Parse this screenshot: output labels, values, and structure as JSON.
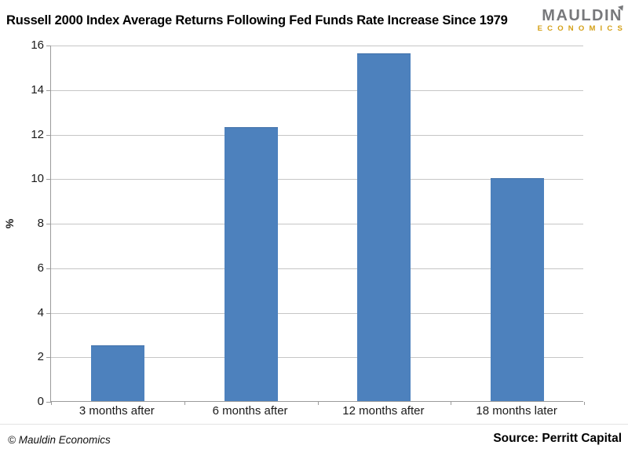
{
  "header": {
    "title": "Russell 2000 Index Average Returns Following Fed Funds Rate Increase Since 1979",
    "logo": {
      "line1": "MAULDIN",
      "line2": "ECONOMICS",
      "gray": "#77787b",
      "gold": "#d4a017"
    }
  },
  "chart_data": {
    "type": "bar",
    "title": "Russell 2000 Index Average Returns Following Fed Funds Rate Increase Since 1979",
    "categories": [
      "3 months after",
      "6 months after",
      "12 months after",
      "18 months later"
    ],
    "values": [
      2.5,
      12.3,
      15.6,
      10.0
    ],
    "xlabel": "",
    "ylabel": "%",
    "ylim": [
      0,
      16
    ],
    "yticks": [
      0,
      2,
      4,
      6,
      8,
      10,
      12,
      14,
      16
    ],
    "grid": "horizontal",
    "legend": "none",
    "bar_color": "#4d81bd",
    "gridline_color": "#c6c6c6",
    "axis_color": "#9b9b9b"
  },
  "footer": {
    "copyright": "© Mauldin Economics",
    "source": "Source: Perritt Capital"
  }
}
